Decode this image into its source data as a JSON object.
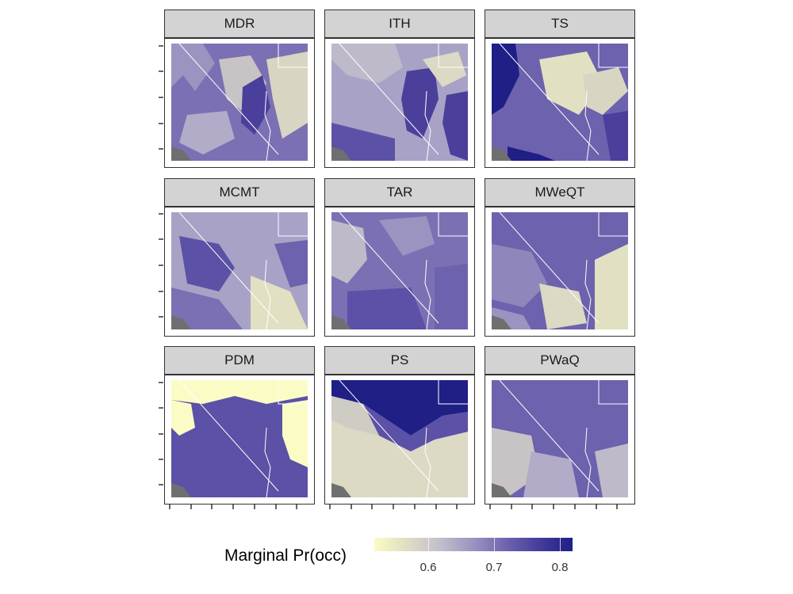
{
  "figure": {
    "facets": [
      {
        "name": "MDR"
      },
      {
        "name": "ITH"
      },
      {
        "name": "TS"
      },
      {
        "name": "MCMT"
      },
      {
        "name": "TAR"
      },
      {
        "name": "MWeQT"
      },
      {
        "name": "PDM"
      },
      {
        "name": "PS"
      },
      {
        "name": "PWaQ"
      }
    ],
    "legend": {
      "title": "Marginal Pr(occ)",
      "ticks": [
        "0.6",
        "0.7",
        "0.8"
      ],
      "low_color": "#fbfbc6",
      "mid_color": "#9b93c0",
      "high_color": "#1f1f86"
    },
    "colors": {
      "strip_bg": "#d3d3d3",
      "ocean": "#6f6f6f",
      "border_lines": "#ffffff"
    }
  }
}
